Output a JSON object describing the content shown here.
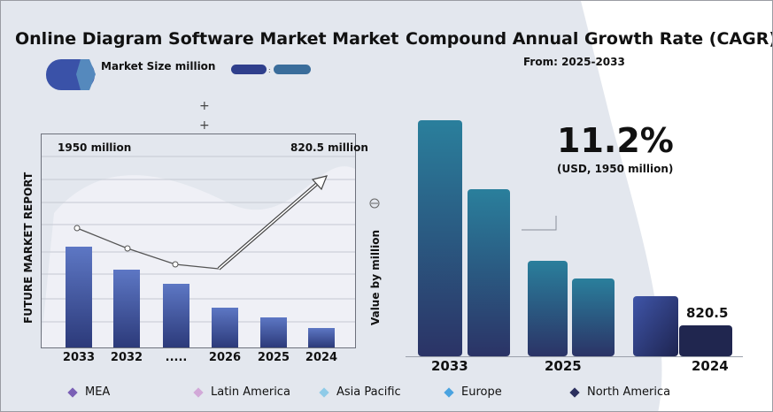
{
  "left_panel": {
    "title": "Online Diagram Software Market Market",
    "legend_label": "Market Size million",
    "y_label": "FUTURE MARKET REPORT",
    "right_label": "Value by million",
    "annotation_start": "1950 million",
    "annotation_end": "820.5 million"
  },
  "right_panel": {
    "title": "Compound Annual Growth Rate (CAGR)",
    "subtitle": "From: 2025-2033",
    "cagr_value": "11.2%",
    "cagr_note": "(USD, 1950 million)",
    "bar_label": "820.5"
  },
  "legend": [
    {
      "label": "MEA",
      "color": "#7a5fb5"
    },
    {
      "label": "Latin America",
      "color": "#d2a9d8"
    },
    {
      "label": "Asia Pacific",
      "color": "#8fcbe8"
    },
    {
      "label": "Europe",
      "color": "#4aa3e0"
    },
    {
      "label": "North America",
      "color": "#2b2f5e"
    }
  ],
  "chart_data": [
    {
      "type": "bar",
      "categories": [
        "2033",
        "2032",
        ".....",
        "2026",
        "2025",
        "2024"
      ],
      "values": [
        114,
        88,
        72,
        45,
        34,
        22
      ],
      "line_values": [
        135,
        112,
        94,
        89
      ],
      "trend": "rising arrow after 2026",
      "grid": true,
      "bar_color": "#5a72bf"
    },
    {
      "type": "bar",
      "categories": [
        "2033",
        "2025",
        "2024"
      ],
      "series": [
        {
          "values": [
            267,
            108,
            68
          ]
        },
        {
          "values": [
            189,
            88,
            35
          ]
        }
      ],
      "data_labels": {
        "2024": "820.5"
      },
      "colors": [
        "#2a7f9c",
        "#3f55a8",
        "#20264f"
      ]
    }
  ]
}
